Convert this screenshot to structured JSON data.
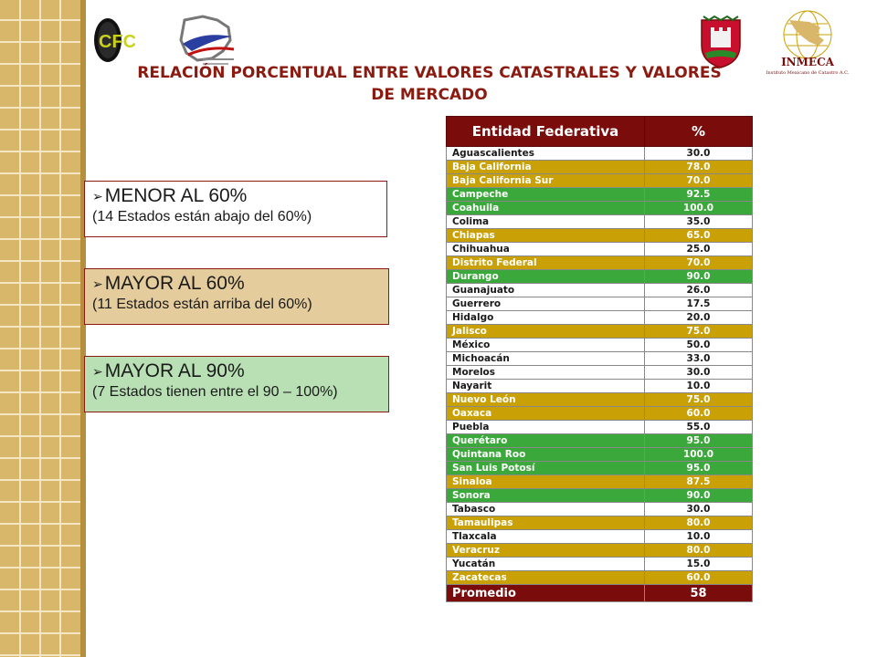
{
  "colors": {
    "gold_band": "#c9a106",
    "green_band": "#3aa83a",
    "maroon": "#7a0c0c"
  },
  "title": "RELACIÓN PORCENTUAL ENTRE VALORES CATASTRALES Y VALORES DE MERCADO",
  "logos": {
    "cfc_text": "CFC",
    "inmeca_text": "INMECA",
    "inmeca_subtitle": "Instituto Mexicano de Catastro A.C."
  },
  "boxes": [
    {
      "heading": "MENOR AL 60%",
      "sub": "(14 Estados están abajo del 60%)",
      "bg": "#ffffff"
    },
    {
      "heading": "MAYOR AL 60%",
      "sub": "(11 Estados están arriba del 60%)",
      "bg": "#e4cc9c"
    },
    {
      "heading": "MAYOR AL 90%",
      "sub": "(7 Estados tienen entre el 90 – 100%)",
      "bg": "#b9e0b4"
    }
  ],
  "table": {
    "headers": [
      "Entidad Federativa",
      "%"
    ],
    "rows": [
      {
        "name": "Aguascalientes",
        "pct": "30.0",
        "band": "white"
      },
      {
        "name": "Baja California",
        "pct": "78.0",
        "band": "gold"
      },
      {
        "name": "Baja California Sur",
        "pct": "70.0",
        "band": "gold"
      },
      {
        "name": "Campeche",
        "pct": "92.5",
        "band": "green"
      },
      {
        "name": "Coahuila",
        "pct": "100.0",
        "band": "green"
      },
      {
        "name": "Colima",
        "pct": "35.0",
        "band": "white"
      },
      {
        "name": "Chiapas",
        "pct": "65.0",
        "band": "gold"
      },
      {
        "name": "Chihuahua",
        "pct": "25.0",
        "band": "white"
      },
      {
        "name": "Distrito Federal",
        "pct": "70.0",
        "band": "gold"
      },
      {
        "name": "Durango",
        "pct": "90.0",
        "band": "green"
      },
      {
        "name": "Guanajuato",
        "pct": "26.0",
        "band": "white"
      },
      {
        "name": "Guerrero",
        "pct": "17.5",
        "band": "white"
      },
      {
        "name": "Hidalgo",
        "pct": "20.0",
        "band": "white"
      },
      {
        "name": "Jalisco",
        "pct": "75.0",
        "band": "gold"
      },
      {
        "name": "México",
        "pct": "50.0",
        "band": "white"
      },
      {
        "name": "Michoacán",
        "pct": "33.0",
        "band": "white"
      },
      {
        "name": "Morelos",
        "pct": "30.0",
        "band": "white"
      },
      {
        "name": "Nayarit",
        "pct": "10.0",
        "band": "white"
      },
      {
        "name": "Nuevo León",
        "pct": "75.0",
        "band": "gold"
      },
      {
        "name": "Oaxaca",
        "pct": "60.0",
        "band": "gold"
      },
      {
        "name": "Puebla",
        "pct": "55.0",
        "band": "white"
      },
      {
        "name": "Querétaro",
        "pct": "95.0",
        "band": "green"
      },
      {
        "name": "Quintana Roo",
        "pct": "100.0",
        "band": "green"
      },
      {
        "name": "San Luis Potosí",
        "pct": "95.0",
        "band": "green"
      },
      {
        "name": "Sinaloa",
        "pct": "87.5",
        "band": "gold"
      },
      {
        "name": "Sonora",
        "pct": "90.0",
        "band": "green"
      },
      {
        "name": "Tabasco",
        "pct": "30.0",
        "band": "white"
      },
      {
        "name": "Tamaulipas",
        "pct": "80.0",
        "band": "gold"
      },
      {
        "name": "Tlaxcala",
        "pct": "10.0",
        "band": "white"
      },
      {
        "name": "Veracruz",
        "pct": "80.0",
        "band": "gold"
      },
      {
        "name": "Yucatán",
        "pct": "15.0",
        "band": "white"
      },
      {
        "name": "Zacatecas",
        "pct": "60.0",
        "band": "gold"
      }
    ],
    "average_label": "Promedio",
    "average_value": "58"
  }
}
